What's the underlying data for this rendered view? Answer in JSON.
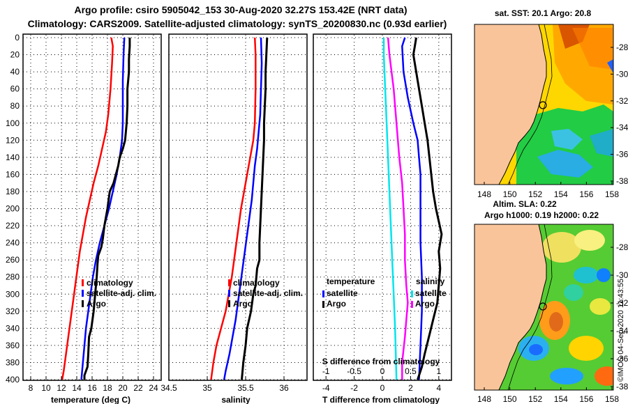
{
  "title_line1": "Argo profile: csiro 5905042_153 30-Aug-2020 32.27S 153.42E (NRT data)",
  "title_line2": "Climatology: CARS2009. Satellite-adjusted climatology: synTS_20200830.nc (0.93d earlier)",
  "colors": {
    "red": "#ff0000",
    "blue": "#0000ff",
    "black": "#000000",
    "cyan": "#00e5ee",
    "magenta": "#ff00ff",
    "land": "#f9c49a"
  },
  "chart_data": [
    {
      "type": "line",
      "id": "temperature",
      "xlabel": "temperature (deg C)",
      "ylabel": "depth",
      "xlim": [
        7,
        25
      ],
      "ylim": [
        0,
        400
      ],
      "xticks": [
        8,
        10,
        12,
        14,
        16,
        18,
        20,
        22,
        24
      ],
      "yticks": [
        0,
        20,
        40,
        60,
        80,
        100,
        120,
        140,
        160,
        180,
        200,
        220,
        240,
        260,
        280,
        300,
        320,
        340,
        360,
        380,
        400
      ],
      "legend": [
        "climatology",
        "satellite-adj. clim.",
        "Argo"
      ],
      "series": [
        {
          "name": "climatology",
          "color": "red",
          "points": [
            [
              18.5,
              0
            ],
            [
              18.7,
              10
            ],
            [
              18.6,
              30
            ],
            [
              18.4,
              60
            ],
            [
              18.1,
              90
            ],
            [
              17.8,
              110
            ],
            [
              17.3,
              130
            ],
            [
              16.8,
              150
            ],
            [
              16.2,
              170
            ],
            [
              15.7,
              190
            ],
            [
              15.2,
              210
            ],
            [
              14.8,
              230
            ],
            [
              14.4,
              250
            ],
            [
              14.1,
              270
            ],
            [
              13.8,
              290
            ],
            [
              13.5,
              310
            ],
            [
              13.2,
              330
            ],
            [
              12.9,
              350
            ],
            [
              12.6,
              370
            ],
            [
              12.3,
              390
            ],
            [
              12.1,
              400
            ]
          ]
        },
        {
          "name": "satellite-adj. clim.",
          "color": "blue",
          "points": [
            [
              20.2,
              0
            ],
            [
              20.1,
              20
            ],
            [
              20.0,
              50
            ],
            [
              20.0,
              80
            ],
            [
              20.0,
              100
            ],
            [
              19.9,
              120
            ],
            [
              19.6,
              140
            ],
            [
              19.2,
              160
            ],
            [
              18.7,
              180
            ],
            [
              18.2,
              200
            ],
            [
              17.6,
              220
            ],
            [
              17.0,
              240
            ],
            [
              16.5,
              260
            ],
            [
              16.1,
              280
            ],
            [
              15.8,
              300
            ],
            [
              15.5,
              320
            ],
            [
              15.2,
              340
            ],
            [
              15.0,
              360
            ],
            [
              14.8,
              380
            ],
            [
              14.6,
              400
            ]
          ]
        },
        {
          "name": "Argo",
          "color": "black",
          "points": [
            [
              20.9,
              0
            ],
            [
              20.9,
              10
            ],
            [
              20.8,
              25
            ],
            [
              20.8,
              40
            ],
            [
              20.6,
              60
            ],
            [
              20.6,
              80
            ],
            [
              20.5,
              100
            ],
            [
              20.3,
              120
            ],
            [
              20.0,
              130
            ],
            [
              19.6,
              140
            ],
            [
              19.4,
              150
            ],
            [
              19.1,
              160
            ],
            [
              18.8,
              170
            ],
            [
              18.3,
              180
            ],
            [
              18.0,
              200
            ],
            [
              17.6,
              220
            ],
            [
              17.4,
              235
            ],
            [
              17.2,
              245
            ],
            [
              16.8,
              255
            ],
            [
              16.7,
              265
            ],
            [
              16.6,
              280
            ],
            [
              16.4,
              300
            ],
            [
              16.2,
              320
            ],
            [
              15.9,
              340
            ],
            [
              15.6,
              350
            ],
            [
              15.5,
              370
            ],
            [
              15.4,
              385
            ],
            [
              15.0,
              395
            ],
            [
              15.0,
              400
            ]
          ]
        }
      ]
    },
    {
      "type": "line",
      "id": "salinity",
      "xlabel": "salinity",
      "xlim": [
        34.5,
        36.3
      ],
      "ylim": [
        0,
        400
      ],
      "xticks": [
        34.5,
        35,
        35.5,
        36
      ],
      "legend": [
        "climatology",
        "satellite-adj. clim.",
        "Argo"
      ],
      "series": [
        {
          "name": "climatology",
          "color": "red",
          "points": [
            [
              35.62,
              0
            ],
            [
              35.63,
              20
            ],
            [
              35.63,
              60
            ],
            [
              35.62,
              100
            ],
            [
              35.6,
              120
            ],
            [
              35.56,
              140
            ],
            [
              35.52,
              160
            ],
            [
              35.48,
              180
            ],
            [
              35.44,
              200
            ],
            [
              35.41,
              220
            ],
            [
              35.38,
              240
            ],
            [
              35.35,
              260
            ],
            [
              35.32,
              280
            ],
            [
              35.28,
              300
            ],
            [
              35.24,
              320
            ],
            [
              35.18,
              340
            ],
            [
              35.12,
              360
            ],
            [
              35.08,
              380
            ],
            [
              35.05,
              400
            ]
          ]
        },
        {
          "name": "satellite-adj. clim.",
          "color": "blue",
          "points": [
            [
              35.7,
              0
            ],
            [
              35.71,
              30
            ],
            [
              35.7,
              60
            ],
            [
              35.69,
              90
            ],
            [
              35.67,
              110
            ],
            [
              35.65,
              130
            ],
            [
              35.62,
              150
            ],
            [
              35.6,
              170
            ],
            [
              35.58,
              190
            ],
            [
              35.55,
              210
            ],
            [
              35.52,
              230
            ],
            [
              35.49,
              250
            ],
            [
              35.46,
              270
            ],
            [
              35.43,
              290
            ],
            [
              35.4,
              310
            ],
            [
              35.37,
              330
            ],
            [
              35.33,
              350
            ],
            [
              35.29,
              370
            ],
            [
              35.24,
              390
            ],
            [
              35.22,
              400
            ]
          ]
        },
        {
          "name": "Argo",
          "color": "black",
          "points": [
            [
              35.78,
              0
            ],
            [
              35.77,
              20
            ],
            [
              35.76,
              40
            ],
            [
              35.76,
              60
            ],
            [
              35.75,
              80
            ],
            [
              35.74,
              100
            ],
            [
              35.74,
              120
            ],
            [
              35.73,
              140
            ],
            [
              35.72,
              160
            ],
            [
              35.71,
              180
            ],
            [
              35.7,
              200
            ],
            [
              35.69,
              220
            ],
            [
              35.68,
              240
            ],
            [
              35.68,
              260
            ],
            [
              35.65,
              270
            ],
            [
              35.63,
              290
            ],
            [
              35.6,
              300
            ],
            [
              35.57,
              320
            ],
            [
              35.52,
              340
            ],
            [
              35.5,
              360
            ],
            [
              35.47,
              380
            ],
            [
              35.45,
              400
            ]
          ]
        }
      ]
    },
    {
      "type": "line",
      "id": "difference",
      "xlabel": "T difference from climatology",
      "xlabel_top": "S difference from climatology",
      "xlim": [
        -4.9,
        4.9
      ],
      "ylim": [
        0,
        400
      ],
      "xticks": [
        -4,
        -2,
        0,
        2,
        4
      ],
      "xticks_top_labels": [
        "-1",
        "-0.5",
        "0",
        "0.5",
        "1"
      ],
      "legend_left_title": "temperature",
      "legend_right_title": "salinity",
      "legend": [
        "satellite",
        "Argo"
      ],
      "series": [
        {
          "name": "T satellite",
          "color": "blue",
          "points": [
            [
              1.6,
              0
            ],
            [
              1.4,
              10
            ],
            [
              1.5,
              40
            ],
            [
              1.8,
              70
            ],
            [
              2.2,
              100
            ],
            [
              2.5,
              120
            ],
            [
              2.6,
              140
            ],
            [
              2.7,
              160
            ],
            [
              2.7,
              200
            ],
            [
              2.7,
              240
            ],
            [
              2.8,
              280
            ],
            [
              2.8,
              320
            ],
            [
              2.7,
              360
            ],
            [
              2.6,
              400
            ]
          ]
        },
        {
          "name": "T Argo",
          "color": "black",
          "points": [
            [
              2.4,
              0
            ],
            [
              2.3,
              10
            ],
            [
              2.2,
              20
            ],
            [
              2.6,
              60
            ],
            [
              2.8,
              80
            ],
            [
              3.0,
              100
            ],
            [
              3.2,
              120
            ],
            [
              3.4,
              150
            ],
            [
              3.6,
              180
            ],
            [
              3.8,
              200
            ],
            [
              4.2,
              230
            ],
            [
              4.0,
              250
            ],
            [
              4.1,
              270
            ],
            [
              4.0,
              290
            ],
            [
              3.9,
              310
            ],
            [
              3.6,
              330
            ],
            [
              3.3,
              350
            ],
            [
              3.0,
              370
            ],
            [
              2.8,
              385
            ],
            [
              2.5,
              400
            ]
          ]
        },
        {
          "name": "S satellite",
          "color": "cyan",
          "points": [
            [
              0.1,
              0
            ],
            [
              0.1,
              20
            ],
            [
              0.2,
              60
            ],
            [
              0.3,
              100
            ],
            [
              0.4,
              140
            ],
            [
              0.5,
              180
            ],
            [
              0.6,
              220
            ],
            [
              0.7,
              260
            ],
            [
              0.8,
              300
            ],
            [
              0.9,
              340
            ],
            [
              1.0,
              400
            ]
          ]
        },
        {
          "name": "S Argo",
          "color": "magenta",
          "points": [
            [
              0.4,
              0
            ],
            [
              0.5,
              20
            ],
            [
              0.8,
              60
            ],
            [
              1.0,
              100
            ],
            [
              1.1,
              120
            ],
            [
              1.2,
              140
            ],
            [
              1.4,
              170
            ],
            [
              1.5,
              200
            ],
            [
              1.6,
              230
            ],
            [
              1.6,
              260
            ],
            [
              1.7,
              290
            ],
            [
              1.8,
              310
            ],
            [
              1.7,
              330
            ],
            [
              1.6,
              350
            ],
            [
              1.4,
              380
            ],
            [
              1.4,
              400
            ]
          ]
        }
      ]
    }
  ],
  "map_top": {
    "title": "sat. SST: 20.1  Argo: 20.8",
    "xticks": [
      "148",
      "150",
      "152",
      "154",
      "156",
      "158"
    ],
    "yticks": [
      "-28",
      "-30",
      "-32",
      "-34",
      "-36",
      "-38"
    ]
  },
  "map_bottom": {
    "title_line1": "Altim. SLA: 0.22",
    "title_line2": "Argo h1000: 0.19 h2000: 0.22",
    "xticks": [
      "148",
      "150",
      "152",
      "154",
      "156",
      "158"
    ],
    "yticks": [
      "-28",
      "-30",
      "-32",
      "-34",
      "-36",
      "-38"
    ]
  },
  "credit": "©IMOS 04-Sep-2020 11:43:55"
}
